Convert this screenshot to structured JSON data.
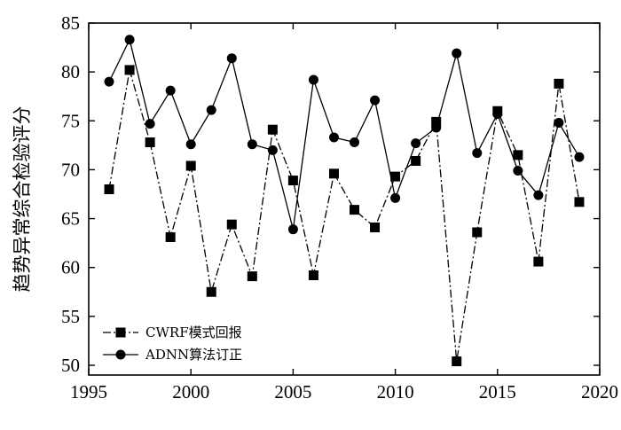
{
  "chart_data": {
    "type": "line",
    "title": "",
    "xlabel": "",
    "ylabel": "趋势异常综合检验评分",
    "xlim": [
      1995,
      2020
    ],
    "ylim": [
      49,
      85
    ],
    "x_ticks": [
      1995,
      2000,
      2005,
      2010,
      2015,
      2020
    ],
    "y_ticks": [
      50,
      55,
      60,
      65,
      70,
      75,
      80,
      85
    ],
    "grid": false,
    "legend_position": "bottom-left",
    "x": [
      1996,
      1997,
      1998,
      1999,
      2000,
      2001,
      2002,
      2003,
      2004,
      2005,
      2006,
      2007,
      2008,
      2009,
      2010,
      2011,
      2012,
      2013,
      2014,
      2015,
      2016,
      2017,
      2018,
      2019
    ],
    "series": [
      {
        "name": "CWRF模式回报",
        "marker": "square",
        "line_style": "dash-dot",
        "color": "#000000",
        "values": [
          68.0,
          80.2,
          72.8,
          63.1,
          70.4,
          57.5,
          64.4,
          59.1,
          74.1,
          68.9,
          59.2,
          69.6,
          65.9,
          64.1,
          69.3,
          70.9,
          74.9,
          50.4,
          63.6,
          76.0,
          71.5,
          60.6,
          78.8,
          66.7
        ]
      },
      {
        "name": "ADNN算法订正",
        "marker": "circle",
        "line_style": "solid",
        "color": "#000000",
        "values": [
          79.0,
          83.3,
          74.7,
          78.1,
          72.6,
          76.1,
          81.4,
          72.6,
          72.0,
          63.9,
          79.2,
          73.3,
          72.8,
          77.1,
          67.1,
          72.7,
          74.3,
          81.9,
          71.7,
          75.7,
          69.9,
          67.4,
          74.8,
          71.3
        ]
      }
    ]
  }
}
